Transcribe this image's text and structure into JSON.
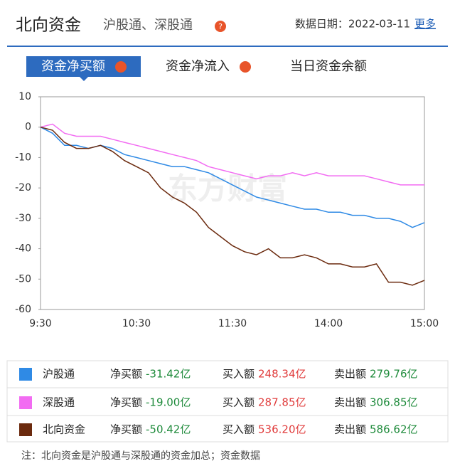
{
  "header": {
    "title": "北向资金",
    "subtitle": "沪股通、深股通",
    "date_label": "数据日期：2022-03-11",
    "more": "更多"
  },
  "tabs": [
    "资金净买额",
    "资金净流入",
    "当日资金余额"
  ],
  "chart_data": {
    "type": "line",
    "watermark": "东方财富",
    "categories": [
      "9:30",
      null,
      null,
      null,
      null,
      null,
      null,
      null,
      "10:30",
      null,
      null,
      null,
      null,
      null,
      null,
      null,
      "11:30",
      null,
      null,
      null,
      null,
      null,
      null,
      null,
      "14:00",
      null,
      null,
      null,
      null,
      null,
      null,
      null,
      "15:00"
    ],
    "series": [
      {
        "name": "沪股通",
        "color": "#2f8ae5",
        "values": [
          0,
          -2,
          -6,
          -6,
          -7,
          -6,
          -7,
          -9,
          -10,
          -11,
          -12,
          -13,
          -13,
          -14,
          -15,
          -17,
          -19,
          -21,
          -23,
          -24,
          -25,
          -26,
          -27,
          -27,
          -28,
          -28,
          -29,
          -29,
          -30,
          -30,
          -31,
          -33,
          -31.42
        ]
      },
      {
        "name": "深股通",
        "color": "#f26cf2",
        "values": [
          0,
          1,
          -2,
          -3,
          -3,
          -3,
          -4,
          -5,
          -6,
          -7,
          -8,
          -9,
          -10,
          -11,
          -13,
          -14,
          -15,
          -16,
          -17,
          -16,
          -16,
          -15,
          -16,
          -15,
          -16,
          -16,
          -16,
          -16,
          -17,
          -18,
          -19,
          -19,
          -19.0
        ]
      },
      {
        "name": "北向资金",
        "color": "#6b2a0e",
        "values": [
          0,
          -1,
          -5,
          -7,
          -7,
          -6,
          -8,
          -11,
          -13,
          -15,
          -20,
          -23,
          -25,
          -28,
          -33,
          -36,
          -39,
          -41,
          -42,
          -40,
          -43,
          -43,
          -42,
          -43,
          -45,
          -45,
          -46,
          -46,
          -45,
          -51,
          -51,
          -52,
          -50.42
        ]
      }
    ],
    "ylim": [
      -60,
      10
    ],
    "yticks": [
      10,
      0,
      -10,
      -20,
      -30,
      -40,
      -50,
      -60
    ],
    "grid": false
  },
  "summary": {
    "labels": {
      "net": "净买额",
      "buy": "买入额",
      "sell": "卖出额"
    },
    "rows": [
      {
        "net": "-31.42亿",
        "buy": "248.34亿",
        "sell": "279.76亿"
      },
      {
        "net": "-19.00亿",
        "buy": "287.85亿",
        "sell": "306.85亿"
      },
      {
        "net": "-50.42亿",
        "buy": "536.20亿",
        "sell": "586.62亿"
      }
    ]
  },
  "note": "注：北向资金是沪股通与深股通的资金加总；资金数据"
}
